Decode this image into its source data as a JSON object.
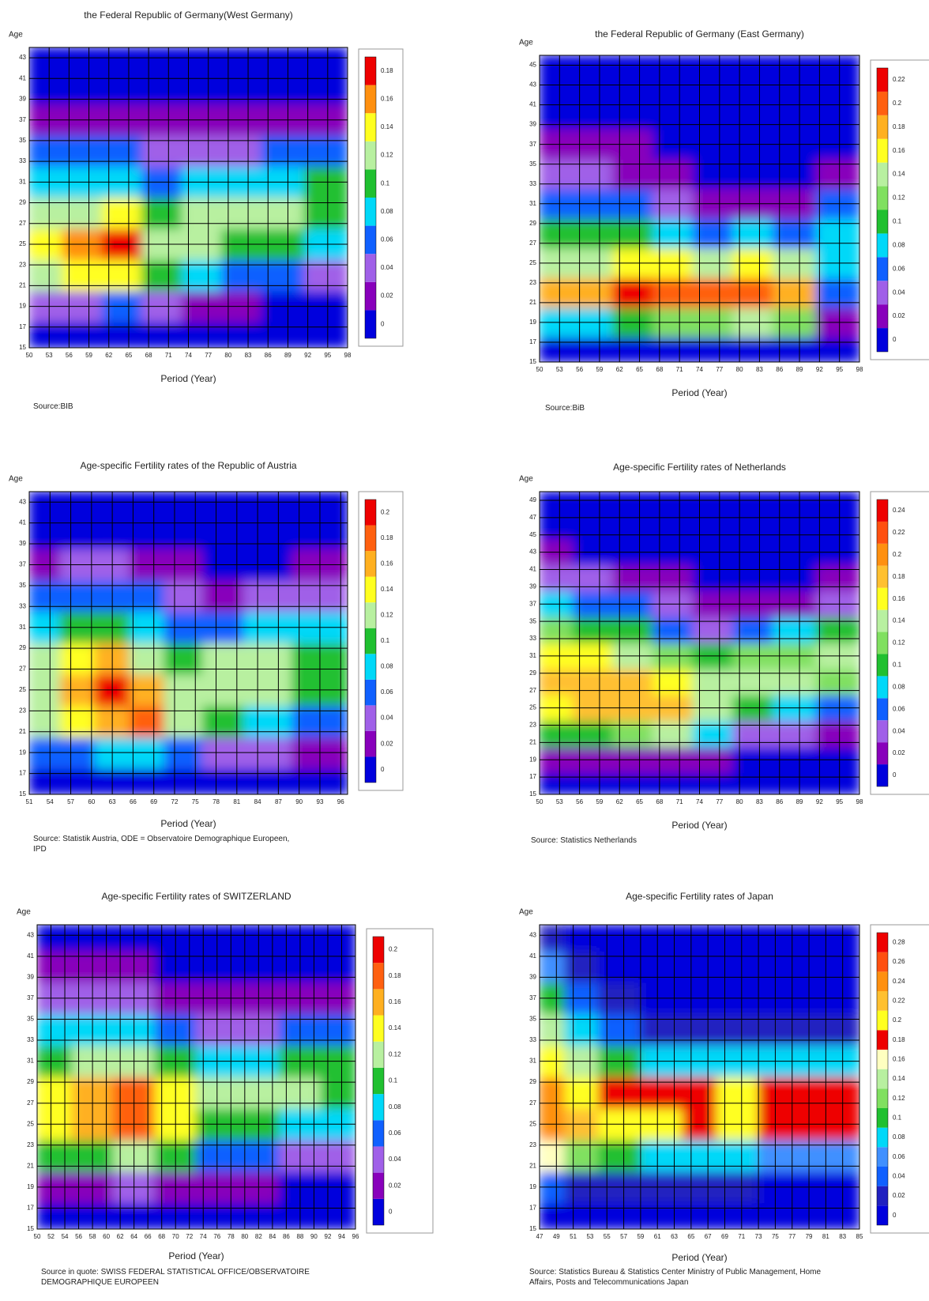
{
  "chart_data": [
    {
      "type": "heatmap",
      "title": "the Federal Republic of Germany(West Germany)",
      "y_label": "Age",
      "x_label": "Period (Year)",
      "source": "Source:BIB",
      "x": [
        52,
        58,
        64,
        70,
        76,
        82,
        88,
        95
      ],
      "y": [
        16,
        19,
        22,
        25,
        28,
        31,
        34,
        37,
        40,
        43
      ],
      "z": [
        [
          0.005,
          0.005,
          0.006,
          0.006,
          0.004,
          0.003,
          0.003,
          0.003
        ],
        [
          0.04,
          0.05,
          0.06,
          0.05,
          0.03,
          0.02,
          0.015,
          0.015
        ],
        [
          0.12,
          0.14,
          0.15,
          0.11,
          0.08,
          0.07,
          0.06,
          0.05
        ],
        [
          0.14,
          0.16,
          0.18,
          0.13,
          0.12,
          0.11,
          0.1,
          0.09
        ],
        [
          0.12,
          0.13,
          0.14,
          0.11,
          0.12,
          0.12,
          0.12,
          0.11
        ],
        [
          0.09,
          0.09,
          0.09,
          0.07,
          0.08,
          0.09,
          0.09,
          0.1
        ],
        [
          0.06,
          0.06,
          0.06,
          0.04,
          0.04,
          0.05,
          0.06,
          0.07
        ],
        [
          0.035,
          0.035,
          0.035,
          0.025,
          0.02,
          0.02,
          0.025,
          0.03
        ],
        [
          0.015,
          0.015,
          0.015,
          0.01,
          0.006,
          0.006,
          0.008,
          0.01
        ],
        [
          0.004,
          0.004,
          0.004,
          0.002,
          0.001,
          0.001,
          0.001,
          0.002
        ]
      ],
      "xlim": [
        50,
        98
      ],
      "ylim": [
        15,
        44
      ],
      "xticks": [
        50,
        53,
        56,
        59,
        62,
        65,
        68,
        71,
        74,
        77,
        80,
        83,
        86,
        89,
        92,
        95,
        98
      ],
      "yticks": [
        15,
        17,
        19,
        21,
        23,
        25,
        27,
        29,
        31,
        33,
        35,
        37,
        39,
        41,
        43
      ],
      "grid": true,
      "colorbar": {
        "ticks": [
          0,
          0.02,
          0.04,
          0.06,
          0.08,
          0.1,
          0.12,
          0.14,
          0.16,
          0.18
        ],
        "colors": [
          "#0000dd",
          "#8800bb",
          "#a060e8",
          "#1060ff",
          "#00d8f8",
          "#20c030",
          "#b8f0a0",
          "#ffff20",
          "#ff9010",
          "#ee0000"
        ]
      }
    },
    {
      "type": "heatmap",
      "title": "the Federal Republic of Germany (East Germany)",
      "y_label": "Age",
      "x_label": "Period (Year)",
      "source": "Source:BiB",
      "x": [
        52,
        58,
        64,
        70,
        76,
        82,
        88,
        95
      ],
      "y": [
        16,
        19,
        22,
        25,
        28,
        31,
        34,
        37,
        40,
        43
      ],
      "z": [
        [
          0.005,
          0.005,
          0.008,
          0.01,
          0.01,
          0.01,
          0.01,
          0.002
        ],
        [
          0.08,
          0.09,
          0.11,
          0.13,
          0.12,
          0.14,
          0.13,
          0.03
        ],
        [
          0.18,
          0.19,
          0.22,
          0.21,
          0.2,
          0.21,
          0.19,
          0.06
        ],
        [
          0.14,
          0.15,
          0.17,
          0.16,
          0.15,
          0.17,
          0.15,
          0.08
        ],
        [
          0.1,
          0.1,
          0.1,
          0.09,
          0.07,
          0.08,
          0.07,
          0.08
        ],
        [
          0.07,
          0.065,
          0.06,
          0.05,
          0.03,
          0.035,
          0.035,
          0.06
        ],
        [
          0.05,
          0.04,
          0.035,
          0.03,
          0.015,
          0.015,
          0.015,
          0.03
        ],
        [
          0.03,
          0.025,
          0.02,
          0.018,
          0.008,
          0.007,
          0.008,
          0.012
        ],
        [
          0.015,
          0.012,
          0.01,
          0.008,
          0.003,
          0.003,
          0.003,
          0.004
        ],
        [
          0.004,
          0.003,
          0.003,
          0.002,
          0.001,
          0.001,
          0.001,
          0.001
        ]
      ],
      "xlim": [
        50,
        98
      ],
      "ylim": [
        15,
        46
      ],
      "xticks": [
        50,
        53,
        56,
        59,
        62,
        65,
        68,
        71,
        74,
        77,
        80,
        83,
        86,
        89,
        92,
        95,
        98
      ],
      "yticks": [
        15,
        17,
        19,
        21,
        23,
        25,
        27,
        29,
        31,
        33,
        35,
        37,
        39,
        41,
        43,
        45
      ],
      "grid": true,
      "colorbar": {
        "ticks": [
          0,
          0.02,
          0.04,
          0.06,
          0.08,
          0.1,
          0.12,
          0.14,
          0.16,
          0.18,
          0.2,
          0.22
        ],
        "colors": [
          "#0000dd",
          "#8800bb",
          "#a060e8",
          "#1060ff",
          "#00d8f8",
          "#20c030",
          "#80e060",
          "#b8f0a0",
          "#ffff20",
          "#ffb020",
          "#ff6010",
          "#ee0000"
        ]
      }
    },
    {
      "type": "heatmap",
      "title": "Age-specific Fertility rates of the Republic of Austria",
      "y_label": "Age",
      "x_label": "Period (Year)",
      "source": "Source: Statistik Austria, ODE = Observatoire Demographique Europeen, IPD",
      "x": [
        53,
        58,
        63,
        68,
        73,
        79,
        85,
        93
      ],
      "y": [
        16,
        19,
        22,
        25,
        28,
        31,
        34,
        37,
        40,
        43
      ],
      "z": [
        [
          0.01,
          0.01,
          0.01,
          0.01,
          0.01,
          0.008,
          0.006,
          0.005
        ],
        [
          0.06,
          0.07,
          0.08,
          0.08,
          0.06,
          0.05,
          0.04,
          0.03
        ],
        [
          0.12,
          0.14,
          0.17,
          0.18,
          0.12,
          0.1,
          0.09,
          0.07
        ],
        [
          0.13,
          0.17,
          0.2,
          0.16,
          0.12,
          0.12,
          0.12,
          0.1
        ],
        [
          0.12,
          0.15,
          0.16,
          0.13,
          0.11,
          0.12,
          0.12,
          0.11
        ],
        [
          0.09,
          0.1,
          0.11,
          0.09,
          0.07,
          0.07,
          0.08,
          0.08
        ],
        [
          0.06,
          0.065,
          0.07,
          0.06,
          0.04,
          0.035,
          0.04,
          0.045
        ],
        [
          0.035,
          0.04,
          0.04,
          0.035,
          0.02,
          0.015,
          0.018,
          0.02
        ],
        [
          0.015,
          0.015,
          0.016,
          0.014,
          0.007,
          0.005,
          0.005,
          0.006
        ],
        [
          0.004,
          0.004,
          0.004,
          0.004,
          0.002,
          0.001,
          0.001,
          0.001
        ]
      ],
      "xlim": [
        51,
        97
      ],
      "ylim": [
        15,
        44
      ],
      "xticks": [
        51,
        54,
        57,
        60,
        63,
        66,
        69,
        72,
        75,
        78,
        81,
        84,
        87,
        90,
        93,
        96
      ],
      "yticks": [
        15,
        17,
        19,
        21,
        23,
        25,
        27,
        29,
        31,
        33,
        35,
        37,
        39,
        41,
        43
      ],
      "grid": true,
      "colorbar": {
        "ticks": [
          0,
          0.02,
          0.04,
          0.06,
          0.08,
          0.1,
          0.12,
          0.14,
          0.16,
          0.18,
          0.2
        ],
        "colors": [
          "#0000dd",
          "#8800bb",
          "#a060e8",
          "#1060ff",
          "#00d8f8",
          "#20c030",
          "#b8f0a0",
          "#ffff20",
          "#ffb020",
          "#ff6010",
          "#ee0000"
        ]
      }
    },
    {
      "type": "heatmap",
      "title": "Age-specific Fertility rates of Netherlands",
      "y_label": "Age",
      "x_label": "Period (Year)",
      "source": "Source: Statistics Netherlands",
      "x": [
        52,
        58,
        64,
        70,
        76,
        82,
        88,
        95
      ],
      "y": [
        16,
        19,
        22,
        25,
        28,
        31,
        34,
        37,
        40,
        43,
        46
      ],
      "z": [
        [
          0.002,
          0.002,
          0.003,
          0.004,
          0.002,
          0.001,
          0.001,
          0.001
        ],
        [
          0.02,
          0.025,
          0.03,
          0.035,
          0.02,
          0.01,
          0.01,
          0.01
        ],
        [
          0.1,
          0.11,
          0.13,
          0.14,
          0.08,
          0.05,
          0.04,
          0.035
        ],
        [
          0.17,
          0.18,
          0.19,
          0.19,
          0.14,
          0.11,
          0.09,
          0.07
        ],
        [
          0.19,
          0.19,
          0.19,
          0.17,
          0.15,
          0.15,
          0.14,
          0.12
        ],
        [
          0.17,
          0.16,
          0.15,
          0.12,
          0.1,
          0.12,
          0.13,
          0.14
        ],
        [
          0.12,
          0.11,
          0.1,
          0.07,
          0.05,
          0.06,
          0.08,
          0.1
        ],
        [
          0.08,
          0.07,
          0.06,
          0.04,
          0.025,
          0.03,
          0.035,
          0.05
        ],
        [
          0.045,
          0.04,
          0.035,
          0.02,
          0.01,
          0.012,
          0.014,
          0.02
        ],
        [
          0.02,
          0.018,
          0.015,
          0.008,
          0.003,
          0.003,
          0.004,
          0.005
        ],
        [
          0.004,
          0.003,
          0.003,
          0.001,
          0.001,
          0.001,
          0.001,
          0.001
        ]
      ],
      "xlim": [
        50,
        98
      ],
      "ylim": [
        15,
        50
      ],
      "xticks": [
        50,
        53,
        56,
        59,
        62,
        65,
        68,
        71,
        74,
        77,
        80,
        83,
        86,
        89,
        92,
        95,
        98
      ],
      "yticks": [
        15,
        17,
        19,
        21,
        23,
        25,
        27,
        29,
        31,
        33,
        35,
        37,
        39,
        41,
        43,
        45,
        47,
        49
      ],
      "grid": true,
      "colorbar": {
        "ticks": [
          0,
          0.02,
          0.04,
          0.06,
          0.08,
          0.1,
          0.12,
          0.14,
          0.16,
          0.18,
          0.2,
          0.22,
          0.24
        ],
        "colors": [
          "#0000dd",
          "#8800bb",
          "#a060e8",
          "#1060ff",
          "#00d8f8",
          "#20c030",
          "#80e060",
          "#b8f0a0",
          "#ffff20",
          "#ffc030",
          "#ff9010",
          "#ff5010",
          "#ee0000"
        ]
      }
    },
    {
      "type": "heatmap",
      "title": "Age-specific Fertility rates of SWITZERLAND",
      "y_label": "Age",
      "x_label": "Period (Year)",
      "source": "Source in quote: SWISS FEDERAL STATISTICAL OFFICE/OBSERVATOIRE DEMOGRAPHIQUE EUROPEEN",
      "x": [
        52,
        58,
        64,
        70,
        76,
        82,
        88,
        94
      ],
      "y": [
        16,
        19,
        22,
        25,
        28,
        31,
        34,
        37,
        40,
        43
      ],
      "z": [
        [
          0.005,
          0.005,
          0.006,
          0.006,
          0.004,
          0.003,
          0.003,
          0.003
        ],
        [
          0.03,
          0.035,
          0.04,
          0.035,
          0.025,
          0.02,
          0.015,
          0.015
        ],
        [
          0.1,
          0.11,
          0.13,
          0.1,
          0.07,
          0.06,
          0.05,
          0.05
        ],
        [
          0.14,
          0.16,
          0.18,
          0.15,
          0.11,
          0.1,
          0.09,
          0.09
        ],
        [
          0.14,
          0.16,
          0.19,
          0.15,
          0.12,
          0.12,
          0.12,
          0.11
        ],
        [
          0.11,
          0.12,
          0.13,
          0.1,
          0.09,
          0.09,
          0.1,
          0.1
        ],
        [
          0.08,
          0.08,
          0.08,
          0.06,
          0.05,
          0.05,
          0.06,
          0.06
        ],
        [
          0.045,
          0.045,
          0.045,
          0.035,
          0.025,
          0.025,
          0.03,
          0.03
        ],
        [
          0.02,
          0.02,
          0.02,
          0.015,
          0.008,
          0.008,
          0.01,
          0.01
        ],
        [
          0.005,
          0.005,
          0.005,
          0.004,
          0.002,
          0.002,
          0.002,
          0.002
        ]
      ],
      "xlim": [
        50,
        96
      ],
      "ylim": [
        15,
        44
      ],
      "xticks": [
        50,
        52,
        54,
        56,
        58,
        60,
        62,
        64,
        66,
        68,
        70,
        72,
        74,
        76,
        78,
        80,
        82,
        84,
        86,
        88,
        90,
        92,
        94,
        96
      ],
      "yticks": [
        15,
        17,
        19,
        21,
        23,
        25,
        27,
        29,
        31,
        33,
        35,
        37,
        39,
        41,
        43
      ],
      "grid": true,
      "colorbar": {
        "ticks": [
          0,
          0.02,
          0.04,
          0.06,
          0.08,
          0.1,
          0.12,
          0.14,
          0.16,
          0.18,
          0.2
        ],
        "colors": [
          "#0000dd",
          "#8800bb",
          "#a060e8",
          "#1060ff",
          "#00d8f8",
          "#20c030",
          "#b8f0a0",
          "#ffff20",
          "#ffb020",
          "#ff6010",
          "#ee0000"
        ]
      }
    },
    {
      "type": "heatmap",
      "title": "Age-specific Fertility rates of Japan",
      "y_label": "Age",
      "x_label": "Period (Year)",
      "source": "Source: Statistics Bureau & Statistics Center Ministry of Public Management, Home Affairs, Posts and Telecommunications Japan",
      "x": [
        48,
        52,
        56,
        62,
        66,
        70,
        76,
        83
      ],
      "y": [
        16,
        19,
        22,
        25,
        28,
        31,
        34,
        37,
        40,
        43
      ],
      "z": [
        [
          0.004,
          0.002,
          0.001,
          0.001,
          0.001,
          0.001,
          0.001,
          0.001
        ],
        [
          0.04,
          0.03,
          0.025,
          0.02,
          0.02,
          0.02,
          0.015,
          0.015
        ],
        [
          0.16,
          0.12,
          0.1,
          0.09,
          0.08,
          0.08,
          0.07,
          0.06
        ],
        [
          0.25,
          0.22,
          0.2,
          0.2,
          0.18,
          0.2,
          0.19,
          0.19
        ],
        [
          0.25,
          0.21,
          0.19,
          0.19,
          0.18,
          0.2,
          0.19,
          0.19
        ],
        [
          0.2,
          0.14,
          0.1,
          0.09,
          0.08,
          0.09,
          0.08,
          0.09
        ],
        [
          0.15,
          0.09,
          0.05,
          0.035,
          0.03,
          0.03,
          0.03,
          0.035
        ],
        [
          0.1,
          0.05,
          0.025,
          0.015,
          0.01,
          0.01,
          0.01,
          0.01
        ],
        [
          0.06,
          0.025,
          0.01,
          0.006,
          0.004,
          0.003,
          0.003,
          0.003
        ],
        [
          0.02,
          0.008,
          0.003,
          0.002,
          0.001,
          0.001,
          0.001,
          0.001
        ]
      ],
      "xlim": [
        47,
        85
      ],
      "ylim": [
        15,
        44
      ],
      "xticks": [
        47,
        49,
        51,
        53,
        55,
        57,
        59,
        61,
        63,
        65,
        67,
        69,
        71,
        73,
        75,
        77,
        79,
        81,
        83,
        85
      ],
      "yticks": [
        15,
        17,
        19,
        21,
        23,
        25,
        27,
        29,
        31,
        33,
        35,
        37,
        39,
        41,
        43
      ],
      "grid": true,
      "colorbar": {
        "ticks": [
          0,
          0.02,
          0.04,
          0.06,
          0.08,
          0.1,
          0.12,
          0.14,
          0.16,
          0.18,
          0.2,
          0.22,
          0.24,
          0.26,
          0.28
        ],
        "colors": [
          "#0000dd",
          "#2020c0",
          "#1060ff",
          "#4090ff",
          "#00d8f8",
          "#20c030",
          "#80e060",
          "#b8f0a0",
          "#ffffc0",
          "#ee0000",
          "#ffff20",
          "#ffc030",
          "#ff9010",
          "#ff5010",
          "#ee0000"
        ]
      }
    }
  ]
}
